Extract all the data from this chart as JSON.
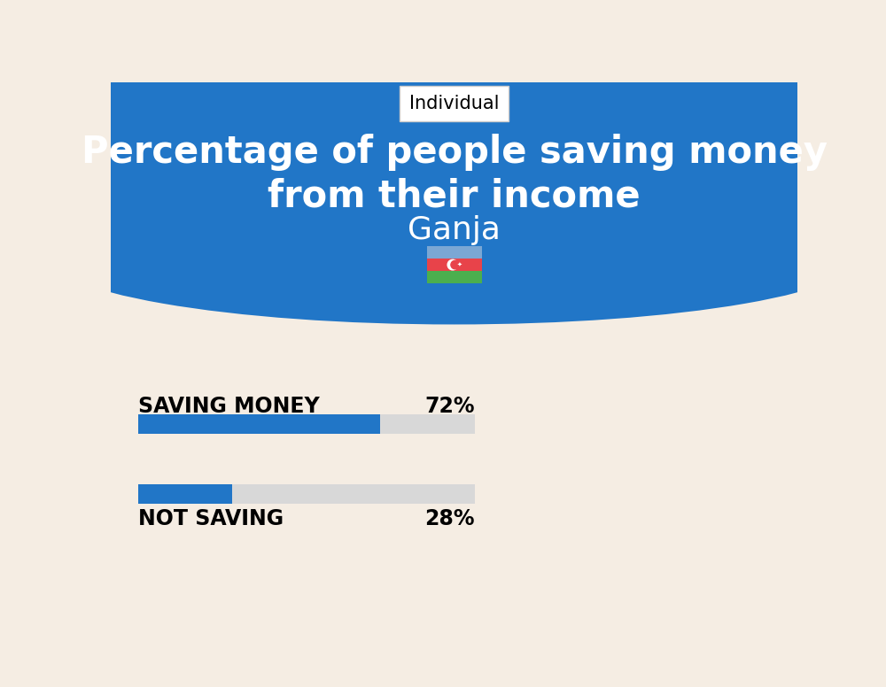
{
  "title_line1": "Percentage of people saving money",
  "title_line2": "from their income",
  "city": "Ganja",
  "tab_label": "Individual",
  "bg_top_color": "#2176C7",
  "bg_bottom_color": "#F5EDE3",
  "bar_color": "#2176C7",
  "bar_bg_color": "#D8D8D8",
  "categories": [
    "SAVING MONEY",
    "NOT SAVING"
  ],
  "values": [
    72,
    28
  ],
  "label_fontsize": 17,
  "value_fontsize": 17,
  "title_fontsize": 30,
  "city_fontsize": 26,
  "tab_fontsize": 15,
  "fig_width": 10.0,
  "fig_height": 7.76,
  "flag_blue": "#7BA7D4",
  "flag_red": "#E8434A",
  "flag_green": "#4BAF4E",
  "flag_crescent": "white"
}
